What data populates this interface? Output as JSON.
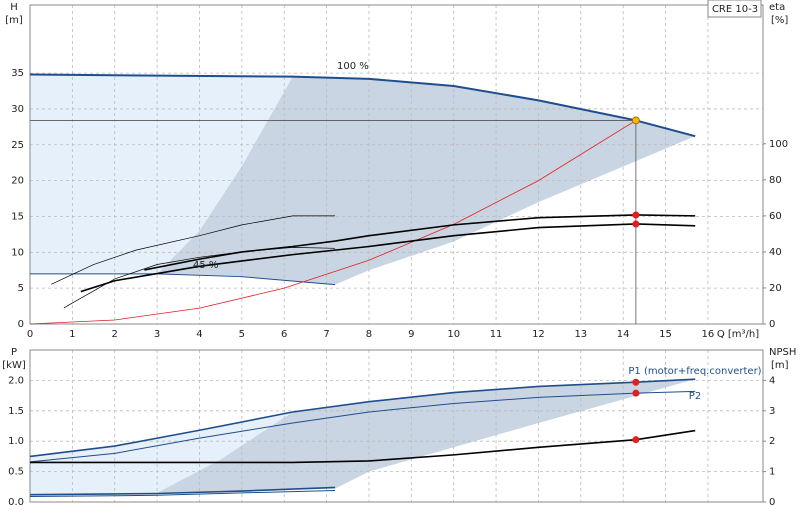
{
  "chart_data": [
    {
      "type": "line",
      "model": "CRE 10-3",
      "y_title": "H",
      "y_unit": "[m]",
      "y2_title": "eta",
      "y2_unit": "[%]",
      "x_label": "Q [m³/h]",
      "labels": [
        "100 %",
        "45 %"
      ],
      "grid": true,
      "xlim": [
        0,
        17.3
      ],
      "xticks": [
        0,
        1,
        2,
        3,
        4,
        5,
        6,
        7,
        8,
        9,
        10,
        11,
        12,
        13,
        14,
        15,
        16
      ],
      "ylim": [
        0,
        44.5
      ],
      "yticks": [
        0,
        5,
        10,
        15,
        20,
        25,
        30,
        35
      ],
      "y2lim": [
        0,
        177
      ],
      "y2ticks": [
        0,
        20,
        40,
        60,
        80,
        100
      ],
      "areas": [
        {
          "color": "#e6f0fb",
          "x": [
            0,
            6.2,
            5,
            4,
            3,
            0
          ],
          "values": [
            34.8,
            34.5,
            22,
            13,
            7,
            7
          ]
        },
        {
          "color": "#c9d5e2",
          "x": [
            6.2,
            8,
            10,
            12,
            14.3,
            15.7,
            12,
            10,
            8,
            7.2,
            5,
            3,
            4,
            5
          ],
          "values": [
            34.5,
            34.2,
            33.2,
            31.2,
            28.4,
            26.2,
            17,
            11.5,
            7.5,
            5.5,
            6.6,
            7,
            13,
            22
          ]
        }
      ],
      "series": [
        {
          "color": "#1f4e8c",
          "width": 2,
          "x": [
            0,
            6.2,
            8,
            10,
            12,
            14.3,
            15.7
          ],
          "values": [
            34.8,
            34.5,
            34.2,
            33.2,
            31.2,
            28.4,
            26.2
          ]
        },
        {
          "color": "#1f4e8c",
          "width": 1,
          "x": [
            0,
            3,
            5,
            7.2
          ],
          "values": [
            7,
            7,
            6.6,
            5.5
          ]
        },
        {
          "color": "#e02020",
          "width": 0.8,
          "x": [
            0,
            2,
            4,
            6,
            8,
            10,
            12,
            14.3
          ],
          "values": [
            0,
            0.56,
            2.22,
            5,
            8.89,
            13.9,
            20,
            28.4
          ]
        },
        {
          "color": "#000",
          "width": 1.6,
          "axis": "y2",
          "x": [
            2.7,
            4,
            5,
            6.2,
            7.2,
            8,
            10,
            12,
            14.3,
            15.7
          ],
          "values": [
            30,
            36,
            40,
            43,
            46,
            49,
            55,
            59,
            60.5,
            60
          ]
        },
        {
          "color": "#000",
          "width": 1.6,
          "axis": "y2",
          "x": [
            1.2,
            2,
            3,
            4,
            5,
            6.2,
            8,
            10,
            12,
            14.3,
            15.7
          ],
          "values": [
            18,
            24,
            28,
            32,
            35,
            38.5,
            43,
            49,
            53.5,
            55.5,
            54.5
          ]
        },
        {
          "color": "#000",
          "width": 0.7,
          "axis": "y2",
          "x": [
            0.5,
            1.5,
            2.5,
            4,
            5,
            6.2,
            7.2
          ],
          "values": [
            22,
            33,
            41,
            49,
            55,
            60,
            60
          ]
        },
        {
          "color": "#000",
          "width": 0.7,
          "axis": "y2",
          "x": [
            0.8,
            2,
            3,
            4,
            5,
            6.2,
            7.2
          ],
          "values": [
            9,
            25,
            33,
            37,
            40,
            42.5,
            42
          ]
        }
      ],
      "points": [
        {
          "x": 14.3,
          "y": 28.4,
          "color": "#f5b800",
          "guide": true
        },
        {
          "x": 14.3,
          "y": 60.5,
          "color": "#e02020",
          "axis": "y2"
        },
        {
          "x": 14.3,
          "y": 55.5,
          "color": "#e02020",
          "axis": "y2"
        }
      ]
    },
    {
      "type": "line",
      "y_title": "P",
      "y_unit": "[kW]",
      "y2_title": "NPSH",
      "y2_unit": "[m]",
      "labels": [
        "P1 (motor+freq.converter)",
        "P2"
      ],
      "grid": true,
      "xlim": [
        0,
        17.3
      ],
      "xticks": [
        0,
        1,
        2,
        3,
        4,
        5,
        6,
        7,
        8,
        9,
        10,
        11,
        12,
        13,
        14,
        15,
        16
      ],
      "ylim": [
        0,
        2.5
      ],
      "yticks": [
        {
          "value": 0,
          "label": "0.0"
        },
        {
          "value": 0.5,
          "label": "0.5"
        },
        {
          "value": 1,
          "label": "1.0"
        },
        {
          "value": 1.5,
          "label": "1.5"
        },
        {
          "value": 2,
          "label": "2.0"
        }
      ],
      "y2lim": [
        0,
        5
      ],
      "y2ticks": [
        0,
        1,
        2,
        3,
        4
      ],
      "areas": [
        {
          "color": "#e6f0fb",
          "x": [
            0,
            2,
            4,
            6.2,
            4.5,
            3,
            0
          ],
          "values": [
            0.75,
            0.92,
            1.18,
            1.48,
            0.7,
            0.15,
            0.1
          ]
        },
        {
          "color": "#c9d5e2",
          "x": [
            6.2,
            8,
            10,
            12,
            14.3,
            15.7,
            12,
            10,
            8,
            7.2,
            3,
            4.5
          ],
          "values": [
            1.48,
            1.65,
            1.8,
            1.9,
            1.97,
            2.02,
            1.3,
            0.9,
            0.5,
            0.22,
            0.15,
            0.7
          ]
        }
      ],
      "series": [
        {
          "color": "#1f4e8c",
          "width": 1.6,
          "x": [
            0,
            2,
            4,
            6.2,
            8,
            10,
            12,
            14.3,
            15.7
          ],
          "values": [
            0.75,
            0.92,
            1.18,
            1.48,
            1.65,
            1.8,
            1.9,
            1.97,
            2.02
          ]
        },
        {
          "color": "#1f4e8c",
          "width": 1,
          "x": [
            0,
            2,
            4,
            6.2,
            8,
            10,
            12,
            14.3,
            15.7
          ],
          "values": [
            0.66,
            0.8,
            1.05,
            1.3,
            1.48,
            1.62,
            1.72,
            1.79,
            1.82
          ]
        },
        {
          "color": "#1f4e8c",
          "width": 1.6,
          "x": [
            0,
            3,
            5,
            7.2
          ],
          "values": [
            0.12,
            0.14,
            0.18,
            0.24
          ]
        },
        {
          "color": "#1f4e8c",
          "width": 1,
          "x": [
            0,
            3,
            5,
            7.2
          ],
          "values": [
            0.09,
            0.11,
            0.15,
            0.19
          ]
        },
        {
          "color": "#000",
          "width": 1.6,
          "axis": "y2",
          "x": [
            0,
            6.2,
            8,
            10,
            12,
            14.3,
            15.7
          ],
          "values": [
            1.3,
            1.3,
            1.35,
            1.55,
            1.8,
            2.05,
            2.35
          ]
        }
      ],
      "points": [
        {
          "x": 14.3,
          "y": 1.97,
          "color": "#e02020"
        },
        {
          "x": 14.3,
          "y": 1.79,
          "color": "#e02020"
        },
        {
          "x": 14.3,
          "y": 2.05,
          "color": "#e02020",
          "axis": "y2"
        }
      ]
    }
  ]
}
